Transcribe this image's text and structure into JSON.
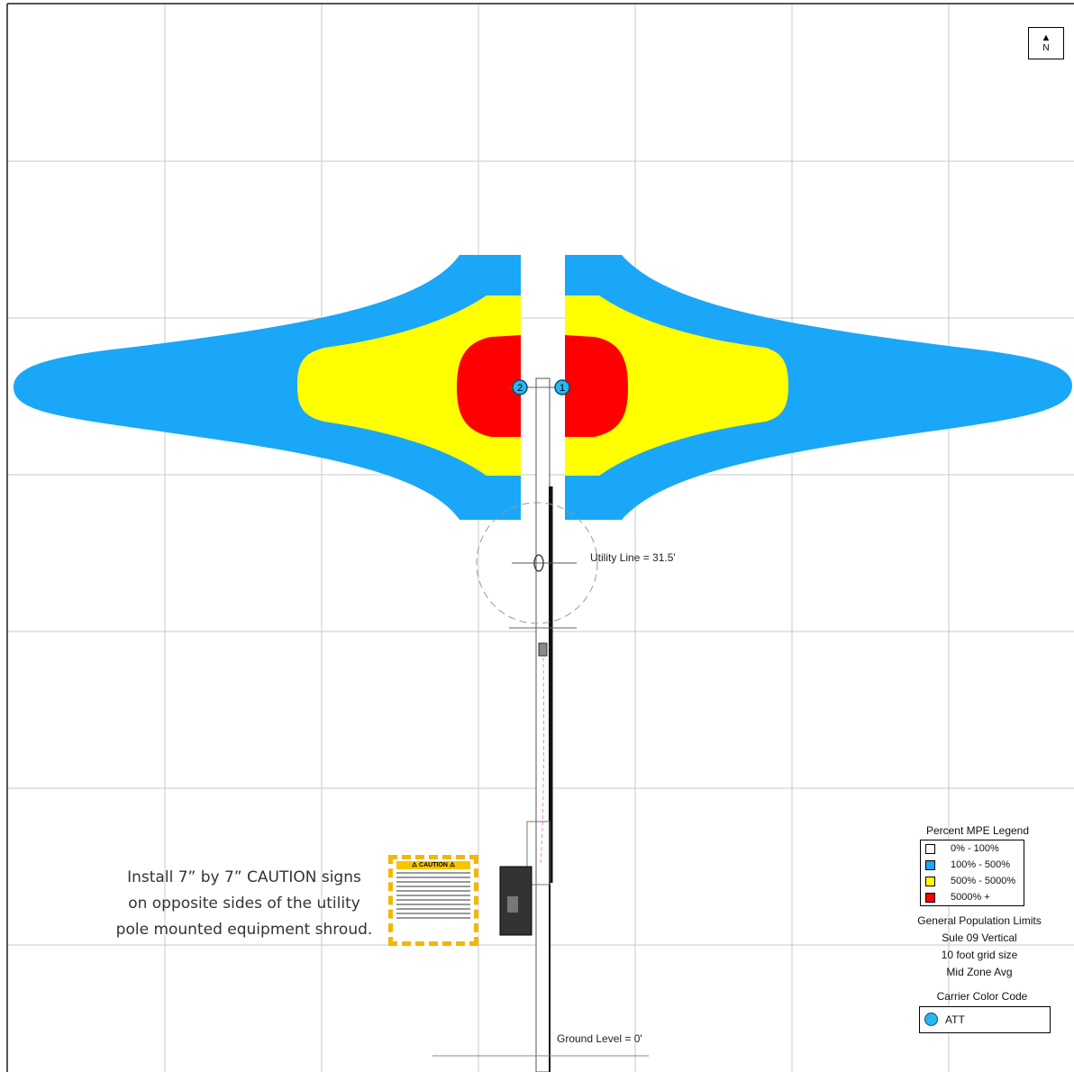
{
  "compass": {
    "arrow": "▲",
    "label": "N"
  },
  "antennas": [
    {
      "id": "1"
    },
    {
      "id": "2"
    }
  ],
  "utility_line": {
    "label": "Utility Line = 31.5'"
  },
  "ground_level": {
    "label": "Ground Level = 0'"
  },
  "install_note": {
    "line1": "Install 7” by 7” CAUTION signs",
    "line2": "on opposite sides of the utility",
    "line3": "pole mounted equipment shroud."
  },
  "caution_sign": {
    "header": "⚠ CAUTION ⚠"
  },
  "legend": {
    "title": "Percent MPE Legend",
    "items": [
      {
        "label": "0% - 100%",
        "color": "#ffffff"
      },
      {
        "label": "100% - 500%",
        "color": "#1aa7f7"
      },
      {
        "label": "500% - 5000%",
        "color": "#ffff00"
      },
      {
        "label": "5000% +",
        "color": "#ff0000"
      }
    ],
    "population": "General Population Limits",
    "view": "Sule 09 Vertical",
    "grid": "10 foot grid size",
    "avg": "Mid Zone Avg"
  },
  "carrier": {
    "title": "Carrier Color Code",
    "name": "ATT",
    "color": "#27b7f0"
  }
}
